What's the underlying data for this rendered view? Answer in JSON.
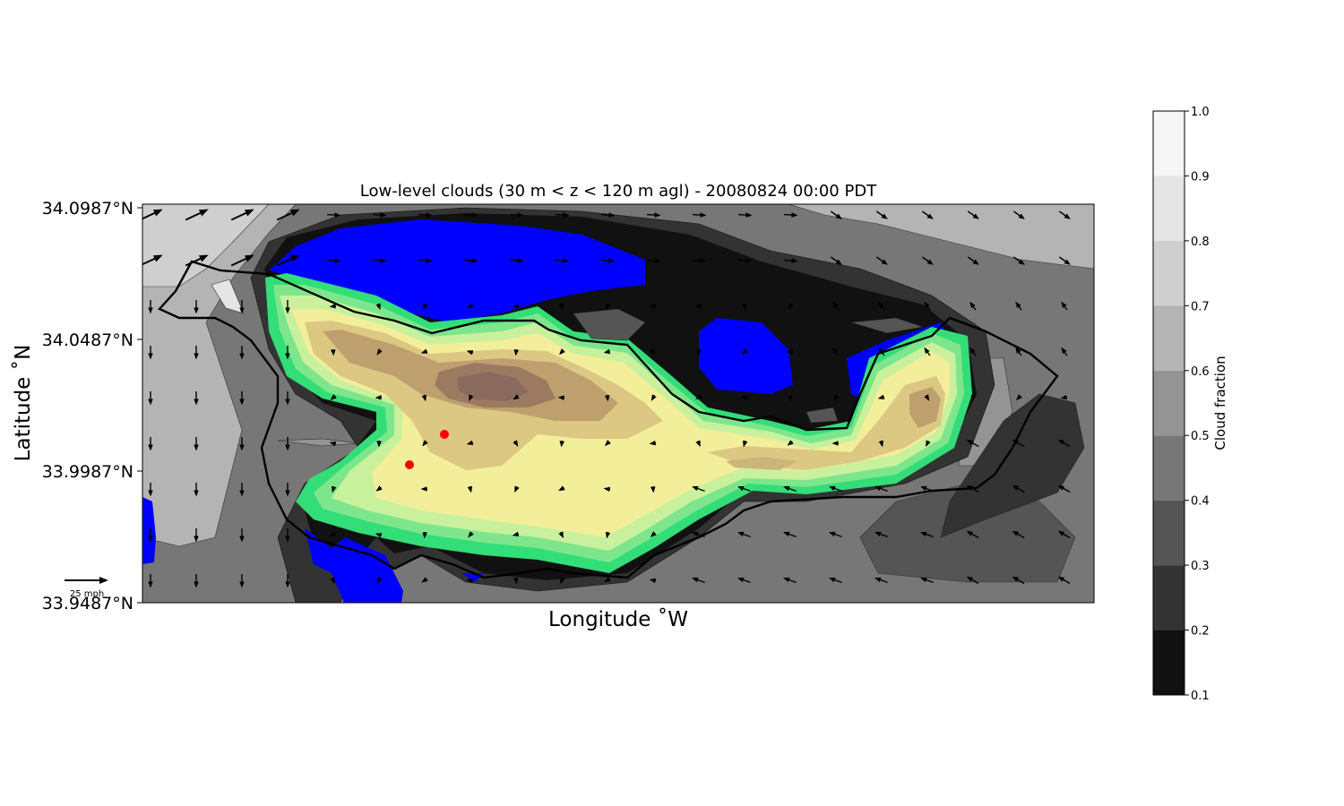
{
  "chart_data": {
    "type": "heatmap",
    "title": "Low-level clouds (30 m < z < 120 m agl) - 20080824 00:00 PDT",
    "xlabel": "Longitude $^\\circ$W",
    "xlabel_display": "Longitude ˚W",
    "ylabel": "Latitude $^\\circ$N",
    "ylabel_display": "Latitude ˚N",
    "y_ticks": [
      "34.0987°N",
      "34.0487°N",
      "33.9987°N",
      "33.9487°N"
    ],
    "y_tick_values": [
      34.0987,
      34.0487,
      33.9987,
      33.9487
    ],
    "ylim": [
      33.9487,
      34.0987
    ],
    "grid": false,
    "colorbar": {
      "label": "Cloud fraction",
      "range": [
        0.1,
        1.0
      ],
      "tick_labels": [
        "0.1",
        "0.2",
        "0.3",
        "0.4",
        "0.5",
        "0.6",
        "0.7",
        "0.8",
        "0.9",
        "1.0"
      ],
      "tick_values": [
        0.1,
        0.2,
        0.3,
        0.4,
        0.5,
        0.6,
        0.7,
        0.8,
        0.9,
        1.0
      ],
      "colors": [
        "#111111",
        "#333333",
        "#555555",
        "#777777",
        "#949494",
        "#b4b4b4",
        "#cfcfcf",
        "#e5e5e5",
        "#f6f6f6"
      ]
    },
    "special_colors": {
      "low_fill": "#0000ff",
      "inner_ramp": [
        "#33dd77",
        "#55e080",
        "#7de68c",
        "#a4ec95",
        "#c9f19d",
        "#eef5a0",
        "#f3ee9a",
        "#e9dc8e",
        "#dcc882",
        "#cdb478",
        "#bea06f",
        "#ad8d68",
        "#9c7a62",
        "#8a6a5e"
      ]
    },
    "quiver_key": {
      "label": "25 mph"
    },
    "markers": {
      "color": "#ff0000"
    }
  }
}
